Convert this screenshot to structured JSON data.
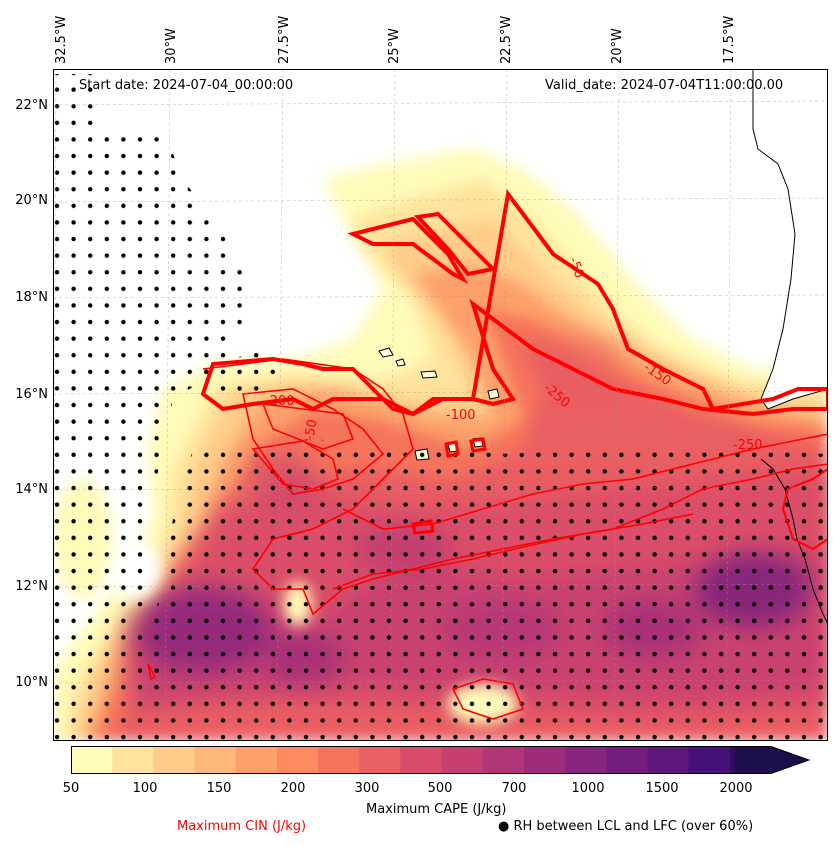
{
  "map": {
    "start_date": "Start date: 2024-07-04_00:00:00",
    "valid_date": "Valid_date: 2024-07-04T11:00:00.00",
    "lon_labels": [
      "32.5°W",
      "30°W",
      "27.5°W",
      "25°W",
      "22.5°W",
      "20°W",
      "17.5°W"
    ],
    "lat_labels": [
      "22°N",
      "20°N",
      "18°N",
      "16°N",
      "14°N",
      "12°N",
      "10°N"
    ],
    "cin_labels": [
      "-50",
      "-150",
      "-250",
      "-250",
      "-100",
      "-50",
      "-200"
    ],
    "land_color": "#ffffff",
    "coast_color": "#000000"
  },
  "colorbar": {
    "ticks": [
      "50",
      "100",
      "150",
      "200",
      "300",
      "500",
      "700",
      "1000",
      "1500",
      "2000"
    ],
    "label": "Maximum CAPE (J/kg)",
    "colors": [
      "#fffbb8",
      "#ffe39c",
      "#ffcc89",
      "#feb679",
      "#fda06a",
      "#fb8a5f",
      "#f6735c",
      "#ea5f62",
      "#d84b6a",
      "#c63f72",
      "#b23577",
      "#9d2d7b",
      "#88257e",
      "#731e7f",
      "#5d177d",
      "#46127a",
      "#2f0e5f",
      "#1d0d4b"
    ],
    "extend": "max"
  },
  "legend": {
    "cin": "Maximum CIN (J/kg)",
    "cin_color": "#ff0000",
    "rh": "● RH between LCL and LFC (over 60%)"
  }
}
